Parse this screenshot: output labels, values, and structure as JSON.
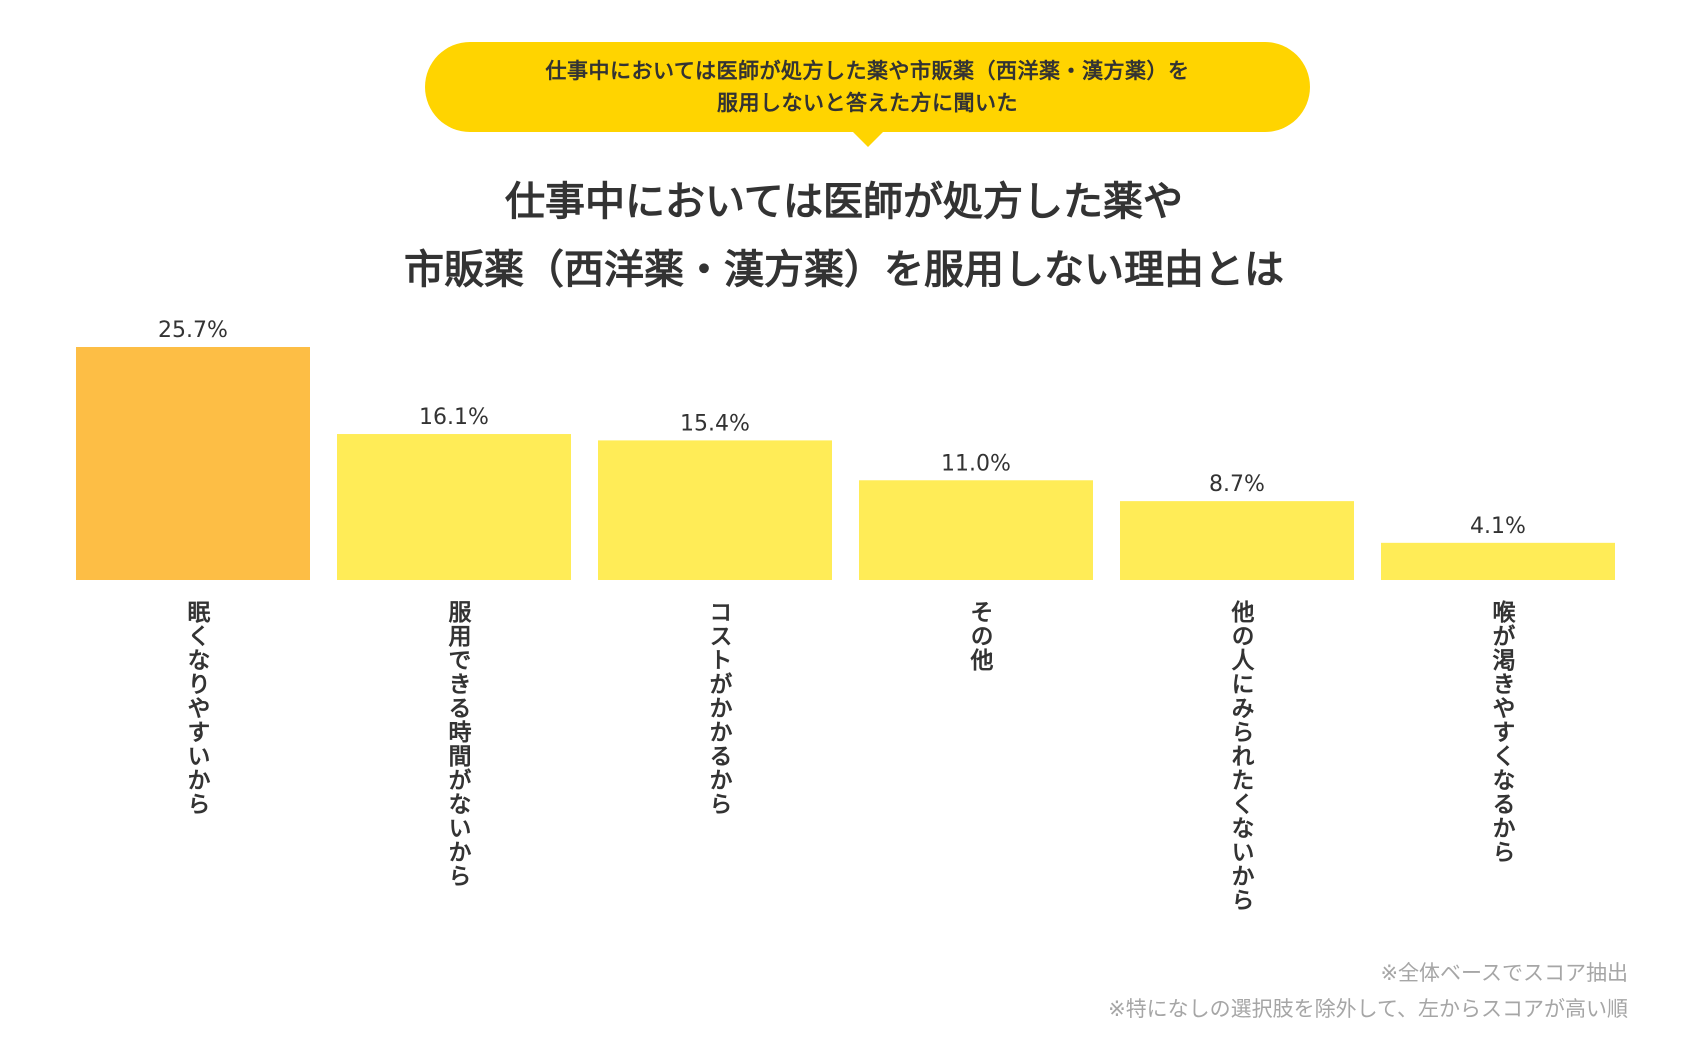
{
  "bubble": {
    "lines": [
      "仕事中においては医師が処方した薬や市販薬（西洋薬・漢方薬）を",
      "服用しないと答えた方に聞いた"
    ]
  },
  "chart_data": {
    "type": "bar",
    "title_lines": [
      "仕事中においては医師が処方した薬や",
      "市販薬（西洋薬・漢方薬）を服用しない理由とは"
    ],
    "categories": [
      "眠くなりやすいから",
      "服用できる時間がないから",
      "コストがかかるから",
      "その他",
      "他の人にみられたくないから",
      "喉が渇きやすくなるから"
    ],
    "values": [
      25.7,
      16.1,
      15.4,
      11.0,
      8.7,
      4.1
    ],
    "value_labels": [
      "25.7%",
      "16.1%",
      "15.4%",
      "11.0%",
      "8.7%",
      "4.1%"
    ],
    "unit": "%",
    "ylim": [
      0,
      25.7
    ],
    "highlight_color": "#fdbe45",
    "bar_color": "#ffec57",
    "grid": false
  },
  "notes": [
    "※全体ベースでスコア抽出",
    "※特になしの選択肢を除外して、左からスコアが高い順"
  ]
}
